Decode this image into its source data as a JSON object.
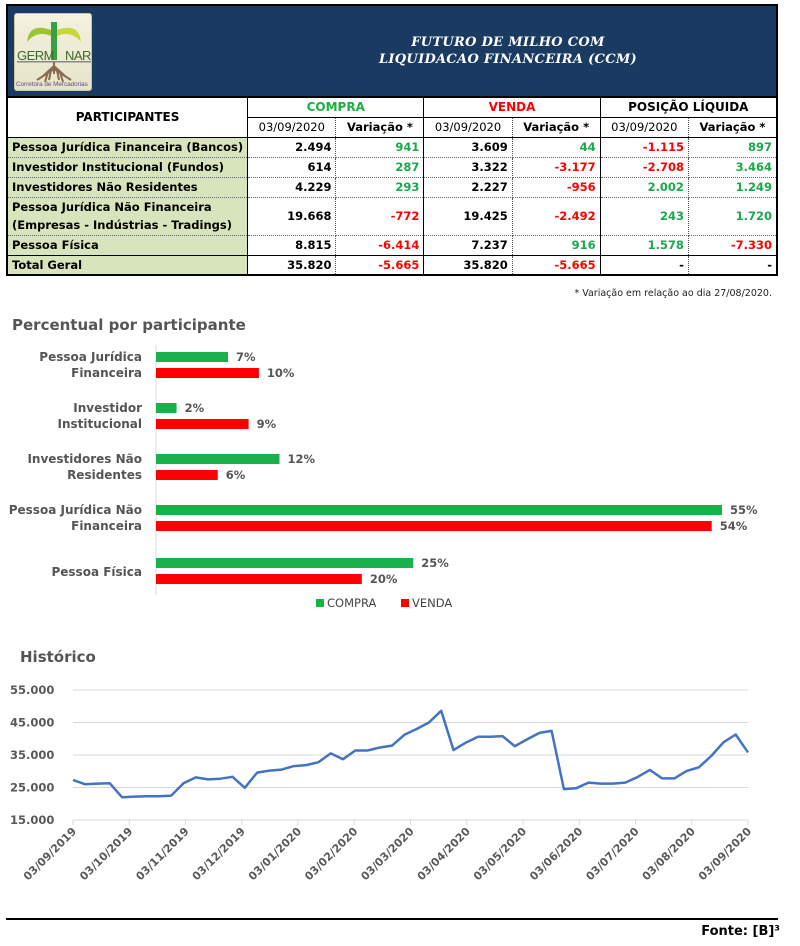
{
  "header": {
    "logo": {
      "brand_left": "GERM",
      "brand_right": "NAR",
      "subtitle": "Corretora de Mercadorias"
    },
    "title_line1": "FUTURO DE MILHO COM",
    "title_line2": "LIQUIDACAO FINANCEIRA (CCM)"
  },
  "table": {
    "participants_header": "PARTICIPANTES",
    "groups": [
      {
        "label": "COMPRA",
        "color": "#1ab040"
      },
      {
        "label": "VENDA",
        "color": "#ff0000"
      },
      {
        "label": "POSIÇÃO LÍQUIDA",
        "color": "#000000"
      }
    ],
    "sub_headers": [
      "03/09/2020",
      "Variação *",
      "03/09/2020",
      "Variação *",
      "03/09/2020",
      "Variação *"
    ],
    "rows": [
      {
        "label": "Pessoa Jurídica Financeira (Bancos)",
        "cells": [
          {
            "v": "2.494",
            "c": "black"
          },
          {
            "v": "941",
            "c": "green"
          },
          {
            "v": "3.609",
            "c": "black"
          },
          {
            "v": "44",
            "c": "green"
          },
          {
            "v": "-1.115",
            "c": "red"
          },
          {
            "v": "897",
            "c": "green"
          }
        ]
      },
      {
        "label": "Investidor Institucional (Fundos)",
        "cells": [
          {
            "v": "614",
            "c": "black"
          },
          {
            "v": "287",
            "c": "green"
          },
          {
            "v": "3.322",
            "c": "black"
          },
          {
            "v": "-3.177",
            "c": "red"
          },
          {
            "v": "-2.708",
            "c": "red"
          },
          {
            "v": "3.464",
            "c": "green"
          }
        ]
      },
      {
        "label": "Investidores Não Residentes",
        "cells": [
          {
            "v": "4.229",
            "c": "black"
          },
          {
            "v": "293",
            "c": "green"
          },
          {
            "v": "2.227",
            "c": "black"
          },
          {
            "v": "-956",
            "c": "red"
          },
          {
            "v": "2.002",
            "c": "green"
          },
          {
            "v": "1.249",
            "c": "green"
          }
        ]
      },
      {
        "label": "Pessoa Jurídica Não Financeira (Empresas - Indústrias - Tradings)",
        "tall": true,
        "cells": [
          {
            "v": "19.668",
            "c": "black"
          },
          {
            "v": "-772",
            "c": "red"
          },
          {
            "v": "19.425",
            "c": "black"
          },
          {
            "v": "-2.492",
            "c": "red"
          },
          {
            "v": "243",
            "c": "green"
          },
          {
            "v": "1.720",
            "c": "green"
          }
        ]
      },
      {
        "label": "Pessoa Física",
        "cells": [
          {
            "v": "8.815",
            "c": "black"
          },
          {
            "v": "-6.414",
            "c": "red"
          },
          {
            "v": "7.237",
            "c": "black"
          },
          {
            "v": "916",
            "c": "green"
          },
          {
            "v": "1.578",
            "c": "green"
          },
          {
            "v": "-7.330",
            "c": "red"
          }
        ]
      },
      {
        "label": "Total Geral",
        "total": true,
        "cells": [
          {
            "v": "35.820",
            "c": "black"
          },
          {
            "v": "-5.665",
            "c": "red"
          },
          {
            "v": "35.820",
            "c": "black"
          },
          {
            "v": "-5.665",
            "c": "red"
          },
          {
            "v": "-",
            "c": "black"
          },
          {
            "v": "-",
            "c": "black"
          }
        ]
      }
    ],
    "footnote": "* Variação em relação ao dia 27/08/2020."
  },
  "chart_data": [
    {
      "type": "bar",
      "orientation": "horizontal",
      "title": "Percentual por participante",
      "categories": [
        [
          "Pessoa Jurídica",
          "Financeira"
        ],
        [
          "Investidor",
          "Institucional"
        ],
        [
          "Investidores Não",
          "Residentes"
        ],
        [
          "Pessoa Jurídica Não",
          "Financeira"
        ],
        [
          "Pessoa Física"
        ]
      ],
      "series": [
        {
          "name": "COMPRA",
          "color": "#1ab04c",
          "values": [
            7,
            2,
            12,
            55,
            25
          ],
          "labels": [
            "7%",
            "2%",
            "12%",
            "55%",
            "25%"
          ]
        },
        {
          "name": "VENDA",
          "color": "#ff0000",
          "values": [
            10,
            9,
            6,
            54,
            20
          ],
          "labels": [
            "10%",
            "9%",
            "6%",
            "54%",
            "20%"
          ]
        }
      ],
      "xlim": [
        0,
        55
      ],
      "legend": "bottom",
      "grid": false
    },
    {
      "type": "line",
      "title": "Histórico",
      "series": [
        {
          "name": "Histórico",
          "color": "#4472c4",
          "values": [
            27300,
            26000,
            26200,
            26300,
            22000,
            22200,
            22300,
            22300,
            22500,
            26300,
            28100,
            27500,
            27700,
            28300,
            24900,
            29600,
            30200,
            30500,
            31600,
            31900,
            32800,
            35500,
            33700,
            36400,
            36400,
            37300,
            37900,
            41200,
            43000,
            45000,
            48600,
            36500,
            38800,
            40600,
            40600,
            40800,
            37700,
            39800,
            41800,
            42400,
            24500,
            24800,
            26500,
            26200,
            26200,
            26500,
            28200,
            30400,
            27800,
            27800,
            30100,
            31200,
            34700,
            38900,
            41300,
            35800
          ]
        }
      ],
      "x_tick_labels": [
        "03/09/2019",
        "03/10/2019",
        "03/11/2019",
        "03/12/2019",
        "03/01/2020",
        "03/02/2020",
        "03/03/2020",
        "03/04/2020",
        "03/05/2020",
        "03/06/2020",
        "03/07/2020",
        "03/08/2020",
        "03/09/2020"
      ],
      "y_tick_labels": [
        "55.000",
        "45.000",
        "35.000",
        "25.000",
        "15.000"
      ],
      "y_ticks": [
        55000,
        45000,
        35000,
        25000,
        15000
      ],
      "ylim": [
        15000,
        55000
      ],
      "grid": true
    }
  ],
  "source": "Fonte: [B]³"
}
